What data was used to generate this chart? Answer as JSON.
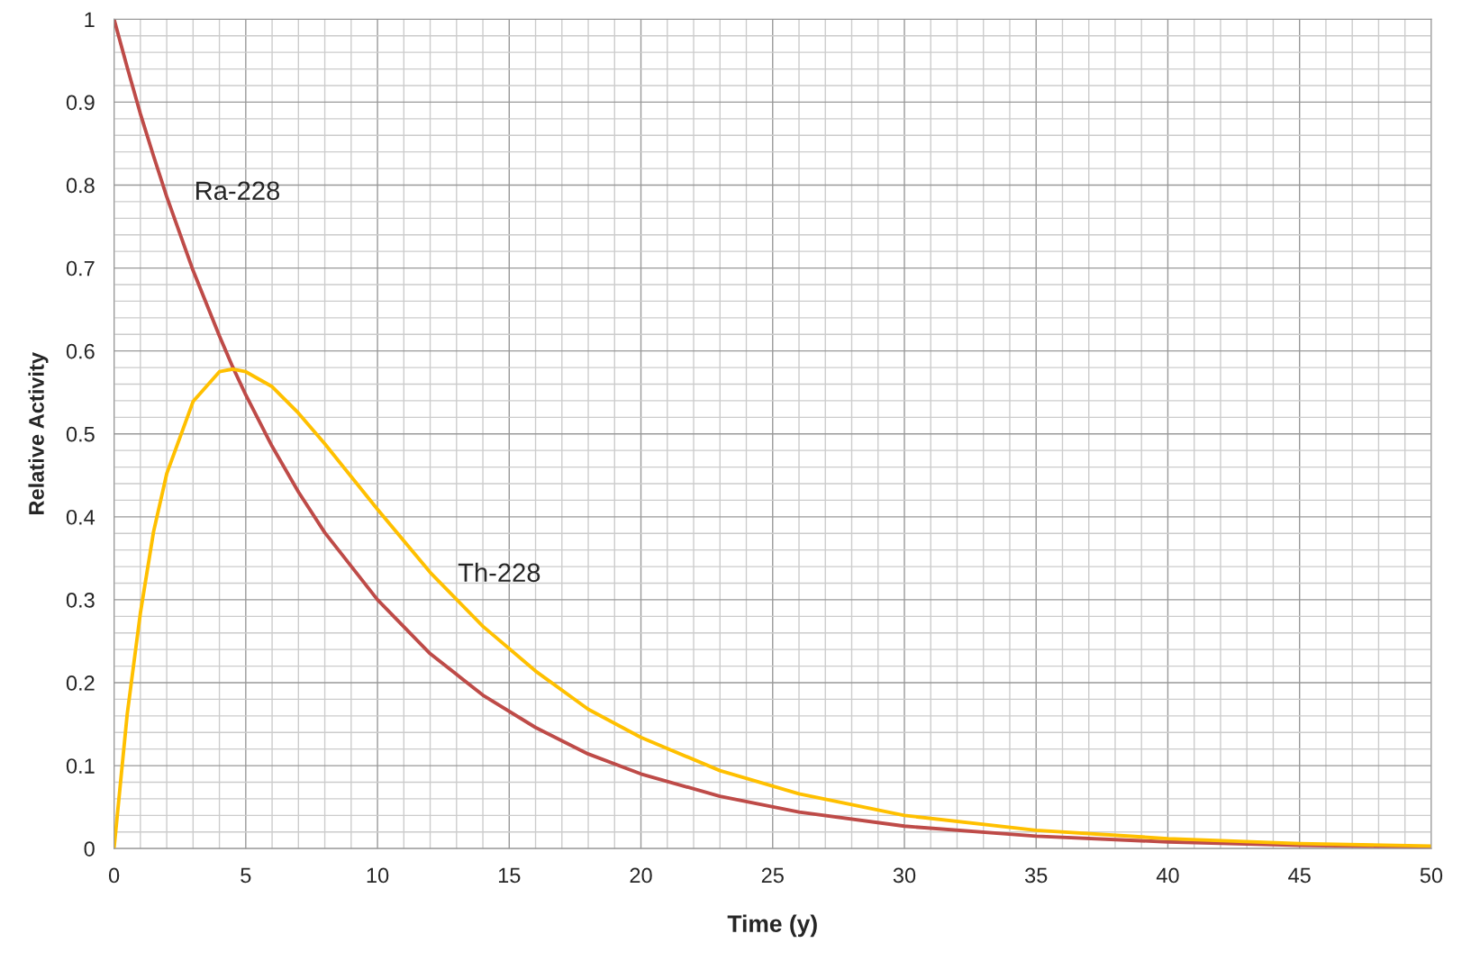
{
  "chart_data": {
    "type": "line",
    "xlabel": "Time (y)",
    "ylabel": "Relative Activity",
    "x": [
      0,
      0.5,
      1,
      1.5,
      2,
      3,
      4,
      4.5,
      5,
      6,
      7,
      8,
      10,
      12,
      14,
      16,
      18,
      20,
      23,
      26,
      30,
      35,
      40,
      45,
      50
    ],
    "series": [
      {
        "name": "Ra-228",
        "color": "#be4b48",
        "values": [
          1,
          0.942,
          0.886,
          0.835,
          0.786,
          0.697,
          0.618,
          0.581,
          0.547,
          0.485,
          0.43,
          0.381,
          0.3,
          0.235,
          0.185,
          0.146,
          0.114,
          0.09,
          0.063,
          0.044,
          0.027,
          0.015,
          0.008,
          0.004,
          0.002
        ]
      },
      {
        "name": "Th-228",
        "color": "#ffc000",
        "values": [
          0,
          0.162,
          0.284,
          0.382,
          0.452,
          0.539,
          0.575,
          0.578,
          0.575,
          0.557,
          0.525,
          0.488,
          0.409,
          0.333,
          0.268,
          0.214,
          0.168,
          0.134,
          0.094,
          0.066,
          0.04,
          0.022,
          0.012,
          0.006,
          0.003
        ]
      }
    ],
    "xlim": [
      0,
      50
    ],
    "ylim": [
      0,
      1
    ],
    "xticks": [
      0,
      {
        "value": 1,
        "label": null
      },
      {
        "value": 2,
        "label": null
      },
      {
        "value": 3,
        "label": null
      },
      {
        "value": 4,
        "label": null
      },
      5,
      {
        "value": 6,
        "label": null
      },
      {
        "value": 7,
        "label": null
      },
      {
        "value": 8,
        "label": null
      },
      {
        "value": 9,
        "label": null
      },
      10,
      {
        "value": 11,
        "label": null
      },
      {
        "value": 12,
        "label": null
      },
      {
        "value": 13,
        "label": null
      },
      {
        "value": 14,
        "label": null
      },
      15,
      {
        "value": 16,
        "label": null
      },
      {
        "value": 17,
        "label": null
      },
      {
        "value": 18,
        "label": null
      },
      {
        "value": 19,
        "label": null
      },
      20,
      {
        "value": 21,
        "label": null
      },
      {
        "value": 22,
        "label": null
      },
      {
        "value": 23,
        "label": null
      },
      {
        "value": 24,
        "label": null
      },
      25,
      {
        "value": 26,
        "label": null
      },
      {
        "value": 27,
        "label": null
      },
      {
        "value": 28,
        "label": null
      },
      {
        "value": 29,
        "label": null
      },
      30,
      {
        "value": 31,
        "label": null
      },
      {
        "value": 32,
        "label": null
      },
      {
        "value": 33,
        "label": null
      },
      {
        "value": 34,
        "label": null
      },
      35,
      {
        "value": 36,
        "label": null
      },
      {
        "value": 37,
        "label": null
      },
      {
        "value": 38,
        "label": null
      },
      {
        "value": 39,
        "label": null
      },
      40,
      {
        "value": 41,
        "label": null
      },
      {
        "value": 42,
        "label": null
      },
      {
        "value": 43,
        "label": null
      },
      {
        "value": 44,
        "label": null
      },
      45,
      {
        "value": 46,
        "label": null
      },
      {
        "value": 47,
        "label": null
      },
      {
        "value": 48,
        "label": null
      },
      {
        "value": 49,
        "label": null
      },
      50
    ],
    "yticks": [
      0,
      {
        "value": 0.02,
        "label": null
      },
      {
        "value": 0.04,
        "label": null
      },
      {
        "value": 0.06,
        "label": null
      },
      {
        "value": 0.08,
        "label": null
      },
      0.1,
      {
        "value": 0.12,
        "label": null
      },
      {
        "value": 0.14,
        "label": null
      },
      {
        "value": 0.16,
        "label": null
      },
      {
        "value": 0.18,
        "label": null
      },
      0.2,
      {
        "value": 0.22,
        "label": null
      },
      {
        "value": 0.24,
        "label": null
      },
      {
        "value": 0.26,
        "label": null
      },
      {
        "value": 0.28,
        "label": null
      },
      0.3,
      {
        "value": 0.32,
        "label": null
      },
      {
        "value": 0.34,
        "label": null
      },
      {
        "value": 0.36,
        "label": null
      },
      {
        "value": 0.38,
        "label": null
      },
      0.4,
      {
        "value": 0.42,
        "label": null
      },
      {
        "value": 0.44,
        "label": null
      },
      {
        "value": 0.46,
        "label": null
      },
      {
        "value": 0.48,
        "label": null
      },
      0.5,
      {
        "value": 0.52,
        "label": null
      },
      {
        "value": 0.54,
        "label": null
      },
      {
        "value": 0.56,
        "label": null
      },
      {
        "value": 0.58,
        "label": null
      },
      0.6,
      {
        "value": 0.62,
        "label": null
      },
      {
        "value": 0.64,
        "label": null
      },
      {
        "value": 0.66,
        "label": null
      },
      {
        "value": 0.68,
        "label": null
      },
      0.7,
      {
        "value": 0.72,
        "label": null
      },
      {
        "value": 0.74,
        "label": null
      },
      {
        "value": 0.76,
        "label": null
      },
      {
        "value": 0.78,
        "label": null
      },
      0.8,
      {
        "value": 0.82,
        "label": null
      },
      {
        "value": 0.84,
        "label": null
      },
      {
        "value": 0.86,
        "label": null
      },
      {
        "value": 0.88,
        "label": null
      },
      0.9,
      {
        "value": 0.92,
        "label": null
      },
      {
        "value": 0.94,
        "label": null
      },
      {
        "value": 0.96,
        "label": null
      },
      {
        "value": 0.98,
        "label": null
      },
      1
    ],
    "grid": true,
    "marker": "none",
    "line_style": "solid"
  }
}
